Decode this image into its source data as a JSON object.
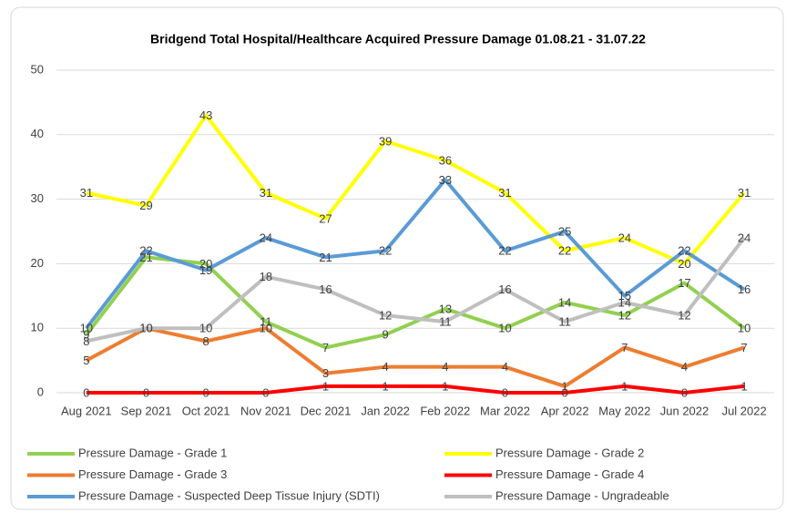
{
  "chart_data": {
    "type": "line",
    "title": "Bridgend Total Hospital/Healthcare Acquired Pressure Damage 01.08.21 - 31.07.22",
    "categories": [
      "Aug 2021",
      "Sep 2021",
      "Oct 2021",
      "Nov 2021",
      "Dec 2021",
      "Jan 2022",
      "Feb 2022",
      "Mar 2022",
      "Apr 2022",
      "May 2022",
      "Jun 2022",
      "Jul 2022"
    ],
    "series": [
      {
        "name": "Pressure Damage - Grade 1",
        "color": "#92d050",
        "values": [
          9,
          21,
          20,
          11,
          7,
          9,
          13,
          10,
          14,
          12,
          17,
          10
        ]
      },
      {
        "name": "Pressure Damage - Grade 2",
        "color": "#ffff00",
        "values": [
          31,
          29,
          43,
          31,
          27,
          39,
          36,
          31,
          22,
          24,
          20,
          31
        ]
      },
      {
        "name": "Pressure Damage - Grade 3",
        "color": "#ed7d31",
        "values": [
          5,
          10,
          8,
          10,
          3,
          4,
          4,
          4,
          1,
          7,
          4,
          7
        ]
      },
      {
        "name": "Pressure Damage - Grade 4",
        "color": "#ff0000",
        "values": [
          0,
          0,
          0,
          0,
          1,
          1,
          1,
          0,
          0,
          1,
          0,
          1
        ]
      },
      {
        "name": "Pressure Damage - Suspected Deep Tissue Injury (SDTI)",
        "color": "#5b9bd5",
        "values": [
          10,
          22,
          19,
          24,
          21,
          22,
          33,
          22,
          25,
          15,
          22,
          16
        ]
      },
      {
        "name": "Pressure Damage - Ungradeable",
        "color": "#bfbfbf",
        "values": [
          8,
          10,
          10,
          18,
          16,
          12,
          11,
          16,
          11,
          14,
          12,
          24
        ]
      }
    ],
    "ylim": [
      0,
      50
    ],
    "yticks": [
      0,
      10,
      20,
      30,
      40,
      50
    ],
    "grid": true,
    "legend": "bottom"
  }
}
